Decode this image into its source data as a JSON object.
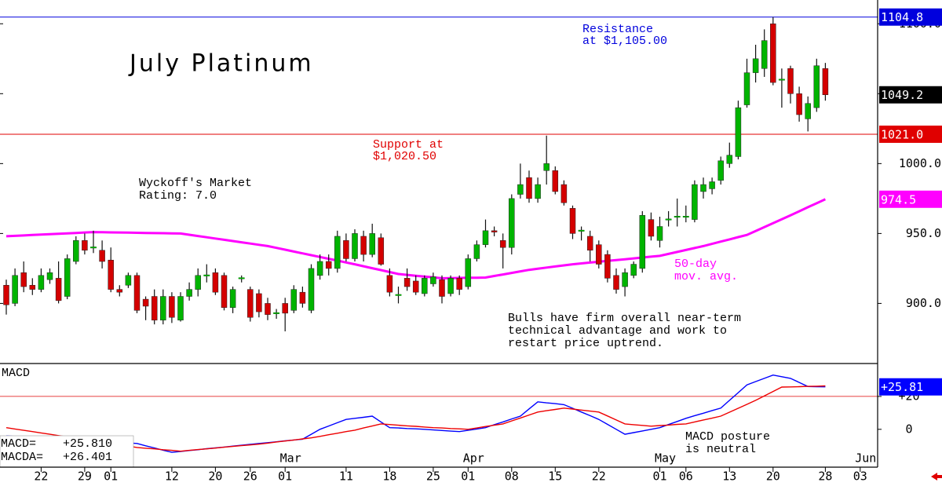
{
  "chart_data": {
    "type": "candlestick",
    "title": "July Platinum",
    "categories": [
      null,
      null,
      null,
      null,
      "22",
      null,
      null,
      null,
      null,
      "29",
      null,
      null,
      "01",
      null,
      null,
      null,
      null,
      null,
      null,
      "12",
      null,
      null,
      null,
      null,
      "20",
      null,
      null,
      null,
      "26",
      null,
      null,
      null,
      "01",
      null,
      null,
      null,
      null,
      null,
      null,
      "11",
      null,
      null,
      null,
      null,
      "18",
      null,
      null,
      null,
      null,
      "25",
      null,
      null,
      null,
      "01",
      null,
      null,
      null,
      null,
      "08",
      null,
      null,
      null,
      null,
      "15",
      null,
      null,
      null,
      null,
      "22",
      null,
      null,
      null,
      null,
      null,
      null,
      "01",
      null,
      null,
      "06",
      null,
      null,
      null,
      null,
      "13",
      null,
      null,
      null,
      null,
      "20",
      null,
      null,
      null,
      null,
      null,
      "28",
      null,
      null,
      null,
      "03"
    ],
    "months": [
      null,
      null,
      null,
      null,
      null,
      null,
      null,
      null,
      null,
      null,
      null,
      null,
      null,
      null,
      null,
      null,
      null,
      null,
      null,
      null,
      null,
      null,
      null,
      null,
      null,
      null,
      null,
      null,
      null,
      null,
      null,
      null,
      "Mar",
      null,
      null,
      null,
      null,
      null,
      null,
      null,
      null,
      null,
      null,
      null,
      null,
      null,
      null,
      null,
      null,
      null,
      null,
      null,
      null,
      "Apr",
      null,
      null,
      null,
      null,
      null,
      null,
      null,
      null,
      null,
      null,
      null,
      null,
      null,
      null,
      null,
      null,
      null,
      null,
      null,
      null,
      null,
      "May",
      null,
      null,
      null,
      null,
      null,
      null,
      null,
      null,
      null,
      null,
      null,
      null,
      null,
      null,
      null,
      null,
      null,
      null,
      null,
      null,
      null,
      null,
      "Jun"
    ],
    "open": [
      913,
      900,
      922,
      913,
      910,
      917,
      918,
      905,
      930,
      945,
      940,
      938,
      931,
      910,
      913,
      920,
      903,
      905,
      888,
      905,
      888,
      905,
      910,
      920,
      922,
      920,
      897,
      918,
      910,
      907,
      900,
      893,
      900,
      895,
      908,
      895,
      920,
      930,
      925,
      945,
      932,
      948,
      935,
      947,
      920,
      906,
      918,
      916,
      907,
      914,
      917,
      907,
      918,
      912,
      932,
      942,
      952,
      945,
      940,
      978,
      990,
      975,
      995,
      995,
      985,
      968,
      952,
      948,
      942,
      935,
      920,
      912,
      920,
      925,
      960,
      945,
      960,
      962,
      962,
      960,
      980,
      982,
      988,
      1000,
      1005,
      1042,
      1065,
      1068,
      1100,
      1060,
      1068,
      1050,
      1032,
      1040,
      1068,
      null,
      null,
      null,
      null
    ],
    "high": [
      917,
      925,
      930,
      918,
      925,
      925,
      930,
      935,
      948,
      950,
      952,
      945,
      940,
      913,
      922,
      922,
      905,
      910,
      910,
      908,
      908,
      915,
      925,
      928,
      925,
      922,
      912,
      920,
      912,
      910,
      904,
      896,
      904,
      913,
      912,
      928,
      935,
      935,
      952,
      950,
      953,
      952,
      957,
      950,
      925,
      912,
      925,
      920,
      920,
      922,
      920,
      920,
      920,
      935,
      945,
      960,
      955,
      950,
      978,
      1000,
      995,
      990,
      1020,
      998,
      988,
      970,
      955,
      952,
      945,
      938,
      925,
      925,
      930,
      966,
      965,
      962,
      966,
      975,
      970,
      988,
      990,
      990,
      1005,
      1015,
      1045,
      1075,
      1085,
      1096,
      1104.8,
      1068,
      1070,
      1055,
      1048,
      1075,
      1072,
      null,
      null,
      null,
      null
    ],
    "low": [
      892,
      898,
      908,
      906,
      908,
      914,
      900,
      903,
      928,
      935,
      936,
      925,
      908,
      905,
      911,
      893,
      888,
      885,
      885,
      886,
      887,
      902,
      905,
      915,
      906,
      895,
      893,
      915,
      887,
      890,
      888,
      889,
      880,
      893,
      897,
      893,
      917,
      920,
      922,
      930,
      930,
      930,
      933,
      927,
      905,
      900,
      909,
      906,
      905,
      912,
      900,
      905,
      906,
      910,
      930,
      940,
      948,
      925,
      935,
      975,
      972,
      972,
      985,
      978,
      970,
      946,
      945,
      930,
      925,
      915,
      907,
      905,
      918,
      922,
      945,
      940,
      955,
      955,
      958,
      958,
      975,
      978,
      985,
      997,
      1003,
      1040,
      1058,
      1062,
      1056,
      1040,
      1043,
      1030,
      1023,
      1037,
      1045,
      null,
      null,
      null,
      null
    ],
    "close": [
      899,
      920,
      912,
      910,
      920,
      922,
      902,
      932,
      945,
      938,
      940,
      930,
      910,
      908,
      920,
      895,
      898,
      888,
      905,
      890,
      905,
      910,
      920,
      920,
      908,
      897,
      910,
      918,
      890,
      894,
      892,
      893,
      893,
      910,
      900,
      925,
      930,
      925,
      948,
      932,
      950,
      935,
      950,
      928,
      908,
      906,
      912,
      908,
      918,
      919,
      905,
      918,
      910,
      932,
      942,
      952,
      951,
      940,
      975,
      985,
      975,
      985,
      1000,
      980,
      972,
      950,
      952,
      938,
      928,
      918,
      910,
      922,
      928,
      963,
      948,
      955,
      960,
      962,
      962,
      985,
      985,
      987,
      1002,
      1006,
      1040,
      1065,
      1075,
      1088,
      1058,
      1060,
      1050,
      1035,
      1043,
      1070,
      1049.2,
      null,
      null,
      null,
      null
    ],
    "up_color": "#00b400",
    "down_color": "#d40000",
    "ylim": [
      857,
      1117
    ],
    "yticks": [
      {
        "value": 1100,
        "label": "1100.0"
      },
      {
        "value": 1050,
        "label": "1050.0"
      },
      {
        "value": 1000,
        "label": "1000.0"
      },
      {
        "value": 950,
        "label": "950.0"
      },
      {
        "value": 900,
        "label": "900.0"
      }
    ],
    "moving_average": {
      "label": [
        "50-day",
        "mov. avg."
      ],
      "color": "#ff00ff",
      "values": [
        948,
        948.3,
        948.6,
        948.9,
        949.2,
        949.5,
        949.8,
        950.1,
        950.4,
        950.7,
        951,
        950.9,
        950.8,
        950.7,
        950.6,
        950.5,
        950.4,
        950.3,
        950.2,
        950.1,
        950,
        949.1,
        948.2,
        947.3,
        946.4,
        945.5,
        944.6,
        943.7,
        942.8,
        941.9,
        941,
        939.7,
        938.4,
        937.1,
        935.8,
        934.5,
        933.2,
        931.9,
        930.6,
        929.3,
        928,
        926.6,
        925.2,
        923.8,
        922.4,
        921,
        920.4,
        919.8,
        919.2,
        918.6,
        918,
        918.1,
        918.2,
        918.3,
        918.4,
        918.5,
        919.6,
        920.7,
        921.8,
        922.9,
        924,
        924.8,
        925.6,
        926.4,
        927.2,
        928,
        928.6,
        929.2,
        929.8,
        930.4,
        931,
        931.6,
        932.2,
        932.8,
        933.4,
        934,
        935.4,
        936.8,
        938.2,
        939.6,
        941,
        942.6,
        944.2,
        945.8,
        947.4,
        949,
        951.8,
        954.6,
        957.4,
        960.2,
        963,
        965.9,
        968.8,
        971.6,
        974.5,
        null,
        null,
        null,
        null
      ]
    },
    "levels": [
      {
        "value": 1104.8,
        "label": "1104.8",
        "note": [
          "Resistance",
          "at $1,105.00"
        ],
        "color": "#0000dd"
      },
      {
        "value": 1021.0,
        "label": "1021.0",
        "note": [
          "Support at",
          "$1,020.50"
        ],
        "color": "#e00000"
      }
    ],
    "rating": [
      "Wyckoff's Market",
      "Rating: 7.0"
    ],
    "commentary": [
      "Bulls have firm overall near-term",
      "technical advantage and work to",
      "restart price uptrend."
    ],
    "indicator": {
      "title": "MACD",
      "note": [
        "MACD posture",
        "is neutral"
      ],
      "ylim": [
        -23,
        40
      ],
      "yticks": [
        {
          "value": 20,
          "label": "+20"
        },
        0
      ],
      "reference": 20,
      "reference_color": "#e00000",
      "series": [
        {
          "name": "MACD=",
          "legend_value": "+25.810",
          "tag": "+25.81",
          "color": "#0000ff",
          "values": [
            -4,
            -4.3,
            -4.6,
            -4.9,
            -5.2,
            -5.5,
            -5.8,
            -6.1,
            -6.5,
            -6.8,
            -7.1,
            -7.4,
            -7.7,
            -8,
            -8.3,
            -8.6,
            -10,
            -11.3,
            -12.7,
            -14,
            -13.5,
            -12.9,
            -12.4,
            -11.8,
            -11.3,
            -10.8,
            -10.2,
            -9.7,
            -9.1,
            -8.6,
            -8.1,
            -7.6,
            -7,
            -6.5,
            -6,
            -3,
            0,
            2,
            4,
            6,
            6.7,
            7.3,
            8,
            4.5,
            1,
            0.8,
            0.5,
            0.3,
            0,
            -0.4,
            -0.7,
            -1.1,
            -1.4,
            -0.6,
            0.2,
            1,
            2.8,
            4.5,
            6.3,
            8,
            12.4,
            16.7,
            16.1,
            15.6,
            15,
            12.8,
            10.5,
            8.3,
            6,
            3,
            0,
            -3,
            -2,
            -1,
            0,
            1,
            2.9,
            4.8,
            6.7,
            8.3,
            9.8,
            11.4,
            12.9,
            17.6,
            22.3,
            27,
            29,
            31,
            33,
            32,
            31,
            28.5,
            26,
            25.9,
            25.81,
            null,
            null,
            null,
            null
          ]
        },
        {
          "name": "MACDA=",
          "legend_value": "+26.401",
          "color": "#ee0000",
          "values": [
            1,
            0.2,
            -0.6,
            -1.4,
            -2.2,
            -3,
            -3.8,
            -4.6,
            -5.4,
            -6.2,
            -7,
            -7.8,
            -8.6,
            -9.4,
            -10.2,
            -11,
            -11.5,
            -11.9,
            -12.4,
            -12.8,
            -13.3,
            -12.8,
            -12.3,
            -11.9,
            -11.4,
            -10.9,
            -10.4,
            -9.9,
            -9.5,
            -9,
            -8.4,
            -7.7,
            -7.1,
            -6.5,
            -5.8,
            -5.2,
            -4.3,
            -3.3,
            -2.4,
            -1.4,
            -0.5,
            0.8,
            2,
            3.3,
            2.9,
            2.5,
            2.1,
            1.8,
            1.4,
            1,
            0.8,
            0.5,
            0.3,
            0,
            0.8,
            1.7,
            2.5,
            3.3,
            5.1,
            6.9,
            8.7,
            10.5,
            11.3,
            12.1,
            12.9,
            12.3,
            11.7,
            11.1,
            10.5,
            8.1,
            5.7,
            3.3,
            2.8,
            2.4,
            1.9,
            2.3,
            2.6,
            3,
            3.3,
            4.5,
            5.7,
            6.8,
            8,
            10.4,
            12.8,
            15.2,
            17.6,
            20.3,
            23,
            25.7,
            25.8,
            25.9,
            26.1,
            26.2,
            26.401,
            null,
            null,
            null,
            null
          ]
        }
      ]
    }
  }
}
